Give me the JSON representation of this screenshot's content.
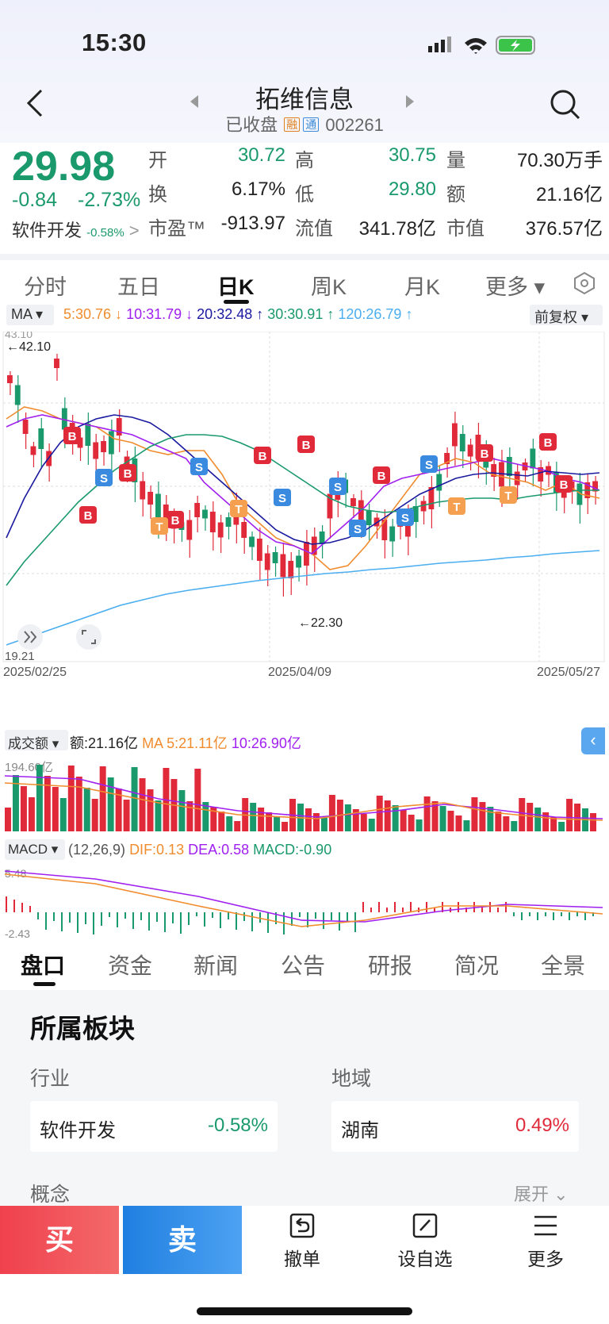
{
  "status": {
    "time": "15:30"
  },
  "header": {
    "title": "拓维信息",
    "status": "已收盘",
    "tag_rong": "融",
    "tag_tong": "通",
    "code": "002261"
  },
  "quote": {
    "price": "29.98",
    "change": "-0.84",
    "pct": "-2.73%",
    "sector": "软件开发",
    "sector_pct": "-0.58%",
    "rows": [
      [
        {
          "l": "开",
          "v": "30.72",
          "c": "green"
        },
        {
          "l": "高",
          "v": "30.75",
          "c": "green"
        },
        {
          "l": "量",
          "v": "70.30万手",
          "c": ""
        }
      ],
      [
        {
          "l": "换",
          "v": "6.17%",
          "c": ""
        },
        {
          "l": "低",
          "v": "29.80",
          "c": "green"
        },
        {
          "l": "额",
          "v": "21.16亿",
          "c": ""
        }
      ],
      [
        {
          "l": "市盈™",
          "v": "-913.97",
          "c": ""
        },
        {
          "l": "流值",
          "v": "341.78亿",
          "c": ""
        },
        {
          "l": "市值",
          "v": "376.57亿",
          "c": ""
        }
      ]
    ]
  },
  "tabs": [
    "分时",
    "五日",
    "日K",
    "周K",
    "月K",
    "更多 ▾"
  ],
  "ma": {
    "label": "MA ▾",
    "ma5": "5:30.76 ↓",
    "ma10": "10:31.79 ↓",
    "ma20": "20:32.48 ↑",
    "ma30": "30:30.91 ↑",
    "ma120": "120:26.79 ↑",
    "adjust": "前复权 ▾"
  },
  "chart": {
    "y_top": "43.10",
    "y_bottom": "19.21",
    "max_label": "←42.10",
    "min_label": "←22.30",
    "dates": [
      "2025/02/25",
      "2025/04/09",
      "2025/05/27"
    ]
  },
  "volume": {
    "label": "成交额 ▾",
    "amount": "额:21.16亿",
    "ma5": "MA 5:21.11亿",
    "ma10": "10:26.90亿",
    "top": "194.60亿"
  },
  "macd": {
    "label": "MACD ▾",
    "params": "(12,26,9)",
    "dif": "DIF:0.13",
    "dea": "DEA:0.58",
    "macd": "MACD:-0.90",
    "top": "5.48",
    "bottom": "-2.43"
  },
  "bottom_tabs": [
    "盘口",
    "资金",
    "新闻",
    "公告",
    "研报",
    "简况",
    "全景"
  ],
  "sector": {
    "title": "所属板块",
    "industry_label": "行业",
    "region_label": "地域",
    "industry": "软件开发",
    "industry_pct": "-0.58%",
    "region": "湖南",
    "region_pct": "0.49%",
    "concept_label": "概念",
    "expand": "展开"
  },
  "actions": {
    "buy": "买",
    "sell": "卖",
    "cancel": "撤单",
    "watch": "设自选",
    "more": "更多"
  },
  "colors": {
    "up": "#e02a3a",
    "down": "#1a9a6c",
    "ma5": "#f08c2e",
    "ma10": "#a020f0",
    "ma20": "#1a1aa0",
    "ma30": "#1a9a6c",
    "ma120": "#4aaef0"
  }
}
